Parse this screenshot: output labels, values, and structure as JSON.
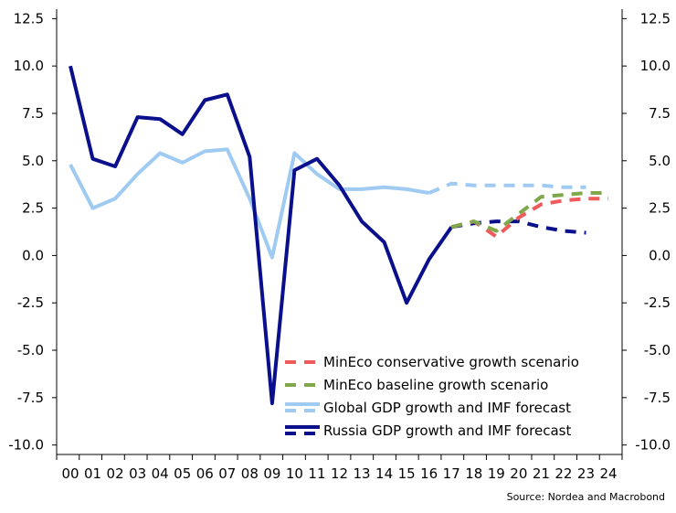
{
  "chart_data": {
    "type": "line",
    "title": "",
    "xlabel": "",
    "ylabel": "",
    "source": "Source: Nordea and Macrobond",
    "x": [
      "00",
      "01",
      "02",
      "03",
      "04",
      "05",
      "06",
      "07",
      "08",
      "09",
      "10",
      "11",
      "12",
      "13",
      "14",
      "15",
      "16",
      "17",
      "18",
      "19",
      "20",
      "21",
      "22",
      "23",
      "24"
    ],
    "ylim": [
      -10.5,
      13
    ],
    "yticks": [
      "12.5",
      "10.0",
      "7.5",
      "5.0",
      "2.5",
      "0.0",
      "-2.5",
      "-5.0",
      "-7.5",
      "-10.0"
    ],
    "ytick_values": [
      12.5,
      10,
      7.5,
      5,
      2.5,
      0,
      -2.5,
      -5,
      -7.5,
      -10
    ],
    "grid": false,
    "legend_position": "bottom-right",
    "series": [
      {
        "name": "MinEco conservative growth scenario",
        "color": "#ef5b5b",
        "style": "dashed",
        "x": [
          "17",
          "18",
          "19",
          "20",
          "21",
          "22",
          "23",
          "24"
        ],
        "values": [
          1.5,
          1.8,
          1.0,
          2.0,
          2.7,
          2.9,
          3.0,
          3.0
        ]
      },
      {
        "name": "MinEco baseline growth scenario",
        "color": "#7fa84a",
        "style": "dashed",
        "x": [
          "17",
          "18",
          "19",
          "20",
          "21",
          "22",
          "23",
          "24"
        ],
        "values": [
          1.5,
          1.8,
          1.3,
          2.2,
          3.1,
          3.2,
          3.3,
          3.3
        ]
      },
      {
        "name": "Global GDP growth and IMF forecast",
        "color": "#9fcaf2",
        "style": "solid-then-dashed",
        "x": [
          "00",
          "01",
          "02",
          "03",
          "04",
          "05",
          "06",
          "07",
          "08",
          "09",
          "10",
          "11",
          "12",
          "13",
          "14",
          "15",
          "16",
          "17",
          "18",
          "19",
          "20",
          "21",
          "22",
          "23",
          "24"
        ],
        "values": [
          4.8,
          2.5,
          3.0,
          4.3,
          5.4,
          4.9,
          5.5,
          5.6,
          3.0,
          -0.1,
          5.4,
          4.3,
          3.5,
          3.5,
          3.6,
          3.5,
          3.3,
          3.8,
          3.7,
          3.7,
          3.7,
          3.7,
          3.6,
          3.6,
          null
        ],
        "forecast_from": "16"
      },
      {
        "name": "Russia GDP growth and IMF forecast",
        "color": "#0a0f8c",
        "style": "solid-then-dashed",
        "x": [
          "00",
          "01",
          "02",
          "03",
          "04",
          "05",
          "06",
          "07",
          "08",
          "09",
          "10",
          "11",
          "12",
          "13",
          "14",
          "15",
          "16",
          "17",
          "18",
          "19",
          "20",
          "21",
          "22",
          "23",
          "24"
        ],
        "values": [
          10.0,
          5.1,
          4.7,
          7.3,
          7.2,
          6.4,
          8.2,
          8.5,
          5.2,
          -7.8,
          4.5,
          5.1,
          3.7,
          1.8,
          0.7,
          -2.5,
          -0.2,
          1.5,
          1.7,
          1.8,
          1.8,
          1.5,
          1.3,
          1.2,
          null
        ],
        "forecast_from": "17"
      }
    ]
  }
}
